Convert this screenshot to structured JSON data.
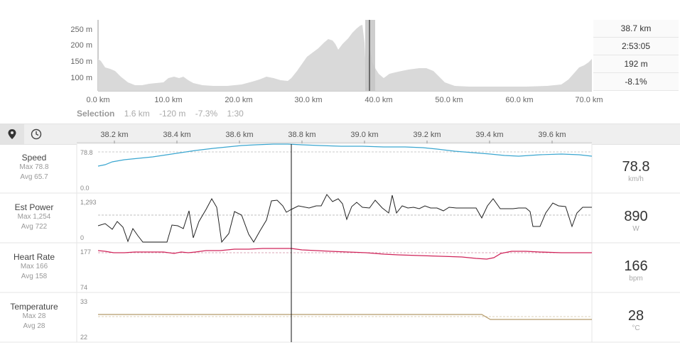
{
  "elevation": {
    "y_ticks": [
      "250 m",
      "200 m",
      "150 m",
      "100 m"
    ],
    "x_ticks": [
      "0.0 km",
      "10.0 km",
      "20.0 km",
      "30.0 km",
      "40.0 km",
      "50.0 km",
      "60.0 km",
      "70.0 km"
    ],
    "stats": [
      "38.7 km",
      "2:53:05",
      "192 m",
      "-8.1%"
    ],
    "fill_color": "#d9d9d9",
    "selection_color": "#c4c4c4"
  },
  "selection": {
    "label": "Selection",
    "distance": "1.6 km",
    "elevation_change": "-120 m",
    "grade": "-7.3%",
    "time": "1:30"
  },
  "toolbar": {
    "map_icon": "map-pin-icon",
    "time_icon": "clock-icon"
  },
  "detail_axis": {
    "ticks": [
      "38.2 km",
      "38.4 km",
      "38.6 km",
      "38.8 km",
      "39.0 km",
      "39.2 km",
      "39.4 km",
      "39.6 km"
    ]
  },
  "metrics": [
    {
      "name": "Speed",
      "max": "Max 78.8",
      "avg": "Avg 65.7",
      "ymax": "78.8",
      "ymin": "0.0",
      "value": "78.8",
      "unit": "km/h",
      "color": "#3aa6d0"
    },
    {
      "name": "Est Power",
      "max": "Max 1,254",
      "avg": "Avg 722",
      "ymax": "1,293",
      "ymin": "0",
      "value": "890",
      "unit": "W",
      "color": "#222222"
    },
    {
      "name": "Heart Rate",
      "max": "Max 166",
      "avg": "Avg 158",
      "ymax": "177",
      "ymin": "74",
      "value": "166",
      "unit": "bpm",
      "color": "#d0245a"
    },
    {
      "name": "Temperature",
      "max": "Max 28",
      "avg": "Avg 28",
      "ymax": "33",
      "ymin": "22",
      "value": "28",
      "unit": "°C",
      "color": "#b59a6a"
    }
  ]
}
